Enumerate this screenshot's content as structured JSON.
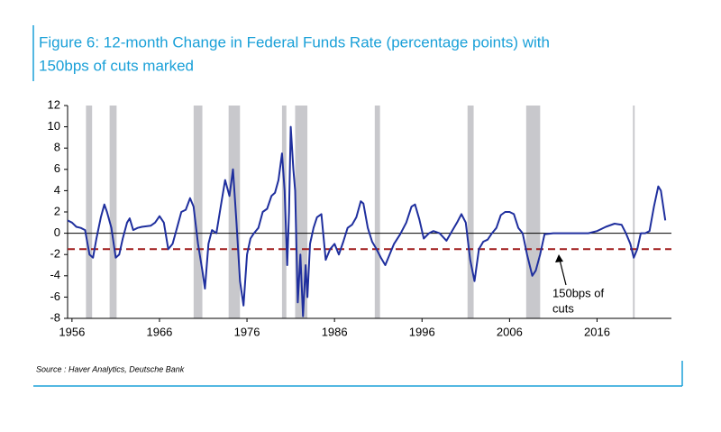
{
  "chart_data": {
    "type": "line",
    "title": [
      "Figure 6: 12-month Change in Federal Funds Rate (percentage points) with",
      "150bps of cuts marked"
    ],
    "source": "Source : Haver Analytics, Deutsche Bank",
    "annotation": [
      "150bps of",
      "cuts"
    ],
    "x": [
      1955.5,
      1956.0,
      1956.5,
      1957.0,
      1957.5,
      1958.0,
      1958.4,
      1958.8,
      1959.3,
      1959.7,
      1960.0,
      1960.5,
      1961.0,
      1961.4,
      1961.8,
      1962.3,
      1962.6,
      1963.0,
      1963.5,
      1964.0,
      1965.0,
      1965.5,
      1966.0,
      1966.5,
      1967.0,
      1967.5,
      1968.0,
      1968.5,
      1969.0,
      1969.5,
      1969.9,
      1970.4,
      1970.9,
      1971.2,
      1971.6,
      1972.0,
      1972.5,
      1973.0,
      1973.5,
      1974.0,
      1974.4,
      1974.8,
      1975.2,
      1975.6,
      1976.0,
      1976.4,
      1976.8,
      1977.3,
      1977.8,
      1978.3,
      1978.8,
      1979.2,
      1979.6,
      1980.0,
      1980.3,
      1980.6,
      1980.8,
      1981.0,
      1981.3,
      1981.5,
      1981.8,
      1982.1,
      1982.4,
      1982.7,
      1982.9,
      1983.2,
      1983.6,
      1984.0,
      1984.5,
      1985.0,
      1985.5,
      1986.0,
      1986.5,
      1987.0,
      1987.5,
      1988.0,
      1988.5,
      1989.0,
      1989.3,
      1989.8,
      1990.3,
      1990.8,
      1991.3,
      1991.8,
      1992.3,
      1992.8,
      1993.5,
      1994.2,
      1994.8,
      1995.2,
      1995.7,
      1996.2,
      1996.8,
      1997.3,
      1998.0,
      1998.8,
      1999.5,
      2000.0,
      2000.5,
      2001.0,
      2001.5,
      2002.0,
      2002.5,
      2003.0,
      2003.5,
      2004.0,
      2004.5,
      2005.0,
      2005.5,
      2006.0,
      2006.5,
      2007.0,
      2007.5,
      2008.0,
      2008.6,
      2009.0,
      2009.5,
      2010.0,
      2011.0,
      2012.0,
      2013.0,
      2014.0,
      2015.0,
      2016.0,
      2016.5,
      2017.0,
      2018.0,
      2018.8,
      2019.3,
      2019.8,
      2020.2,
      2020.6,
      2021.0,
      2021.5,
      2022.0,
      2022.5,
      2023.0,
      2023.3,
      2023.8
    ],
    "series": [
      {
        "name": "12-month change",
        "color": "#1f2f9e",
        "values": [
          1.2,
          1.0,
          0.6,
          0.5,
          0.3,
          -2.0,
          -2.3,
          -0.5,
          1.5,
          2.7,
          2.0,
          0.5,
          -2.3,
          -2.0,
          -0.5,
          1.0,
          1.4,
          0.3,
          0.5,
          0.6,
          0.7,
          1.0,
          1.6,
          1.0,
          -1.5,
          -1.0,
          0.5,
          2.0,
          2.2,
          3.3,
          2.5,
          -1.0,
          -3.5,
          -5.2,
          -1.0,
          0.3,
          0.0,
          2.5,
          5.0,
          3.5,
          6.0,
          1.0,
          -4.5,
          -6.8,
          -2.0,
          -0.5,
          0.0,
          0.5,
          2.0,
          2.3,
          3.5,
          3.8,
          5.0,
          7.5,
          4.0,
          -3.0,
          2.0,
          10.0,
          6.0,
          4.0,
          -6.5,
          -2.0,
          -7.8,
          -3.0,
          -6.0,
          -1.0,
          0.5,
          1.5,
          1.8,
          -2.5,
          -1.5,
          -1.0,
          -2.0,
          -0.8,
          0.5,
          0.8,
          1.5,
          3.0,
          2.8,
          0.5,
          -0.8,
          -1.5,
          -2.3,
          -3.0,
          -2.0,
          -1.0,
          -0.1,
          1.0,
          2.5,
          2.7,
          1.3,
          -0.5,
          0.0,
          0.2,
          0.0,
          -0.7,
          0.3,
          1.0,
          1.8,
          1.0,
          -2.5,
          -4.5,
          -1.5,
          -0.8,
          -0.6,
          0.0,
          0.5,
          1.7,
          2.0,
          2.0,
          1.8,
          0.5,
          0.0,
          -2.0,
          -4.0,
          -3.5,
          -2.0,
          -0.1,
          0.0,
          0.0,
          0.0,
          0.0,
          0.0,
          0.2,
          0.4,
          0.6,
          0.9,
          0.8,
          0.0,
          -1.0,
          -2.3,
          -1.5,
          0.0,
          0.0,
          0.2,
          2.5,
          4.4,
          4.0,
          1.2
        ]
      }
    ],
    "cut_level": -1.5,
    "cut_color": "#a01c1c",
    "shaded_periods": [
      [
        1957.6,
        1958.3
      ],
      [
        1960.3,
        1961.1
      ],
      [
        1969.9,
        1970.9
      ],
      [
        1973.9,
        1975.2
      ],
      [
        1980.0,
        1980.5
      ],
      [
        1981.5,
        1982.9
      ],
      [
        1990.6,
        1991.2
      ],
      [
        2001.2,
        2001.9
      ],
      [
        2007.9,
        2009.5
      ],
      [
        2020.1,
        2020.3
      ]
    ],
    "shade_color": "#c8c8cc",
    "xlim": [
      1955.5,
      2024.5
    ],
    "xticks": [
      1956,
      1966,
      1976,
      1986,
      1996,
      2006,
      2016
    ],
    "ylim": [
      -8,
      12
    ],
    "yticks": [
      -8,
      -6,
      -4,
      -2,
      0,
      2,
      4,
      6,
      8,
      10,
      12
    ]
  }
}
